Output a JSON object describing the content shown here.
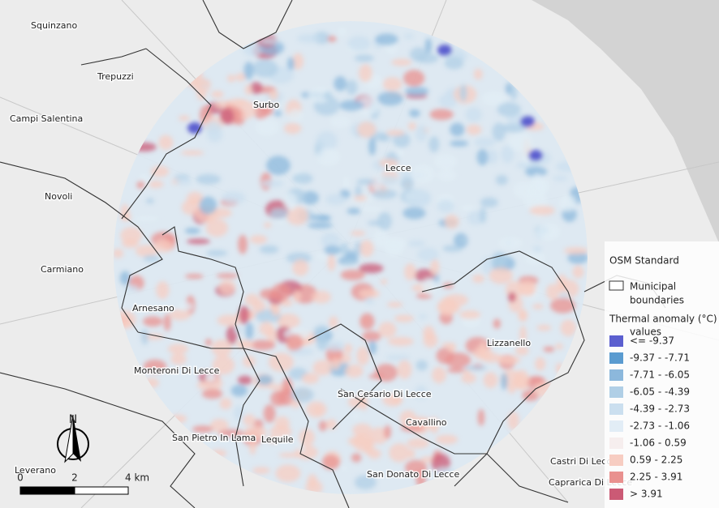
{
  "places": [
    "Squinzano",
    "Trepuzzi",
    "Campi Salentina",
    "Surbo",
    "Lecce",
    "Novoli",
    "Carmiano",
    "Arnesano",
    "Monteroni Di Lecce",
    "Lizzanello",
    "San Cesario Di Lecce",
    "Cavallino",
    "San Pietro In Lama",
    "Lequile",
    "Castri Di Lecce",
    "San Donato Di Lecce",
    "Caprarica Di Lecce",
    "Leverano"
  ],
  "legend": {
    "title": "OSM Standard",
    "boundary_label": [
      "Municipal",
      "boundaries"
    ],
    "anomaly_title": "Thermal anomaly (°C)",
    "values_label": "values",
    "classes": [
      {
        "label": "<= -9.37",
        "color": "#5b5fcf"
      },
      {
        "label": "-9.37 - -7.71",
        "color": "#5a9bd0"
      },
      {
        "label": "-7.71 - -6.05",
        "color": "#8cb8dc"
      },
      {
        "label": "-6.05 - -4.39",
        "color": "#b0cfe6"
      },
      {
        "label": "-4.39 - -2.73",
        "color": "#cbdfef"
      },
      {
        "label": "-2.73 - -1.06",
        "color": "#e2edf6"
      },
      {
        "label": "-1.06 - 0.59",
        "color": "#f6eeee"
      },
      {
        "label": "0.59 - 2.25",
        "color": "#f7cdc2"
      },
      {
        "label": "2.25 - 3.91",
        "color": "#e9918f"
      },
      {
        "label": "> 3.91",
        "color": "#cb5a75"
      }
    ]
  },
  "scale_bar": {
    "labels": [
      "0",
      "2",
      "4 km"
    ]
  },
  "north": "N"
}
